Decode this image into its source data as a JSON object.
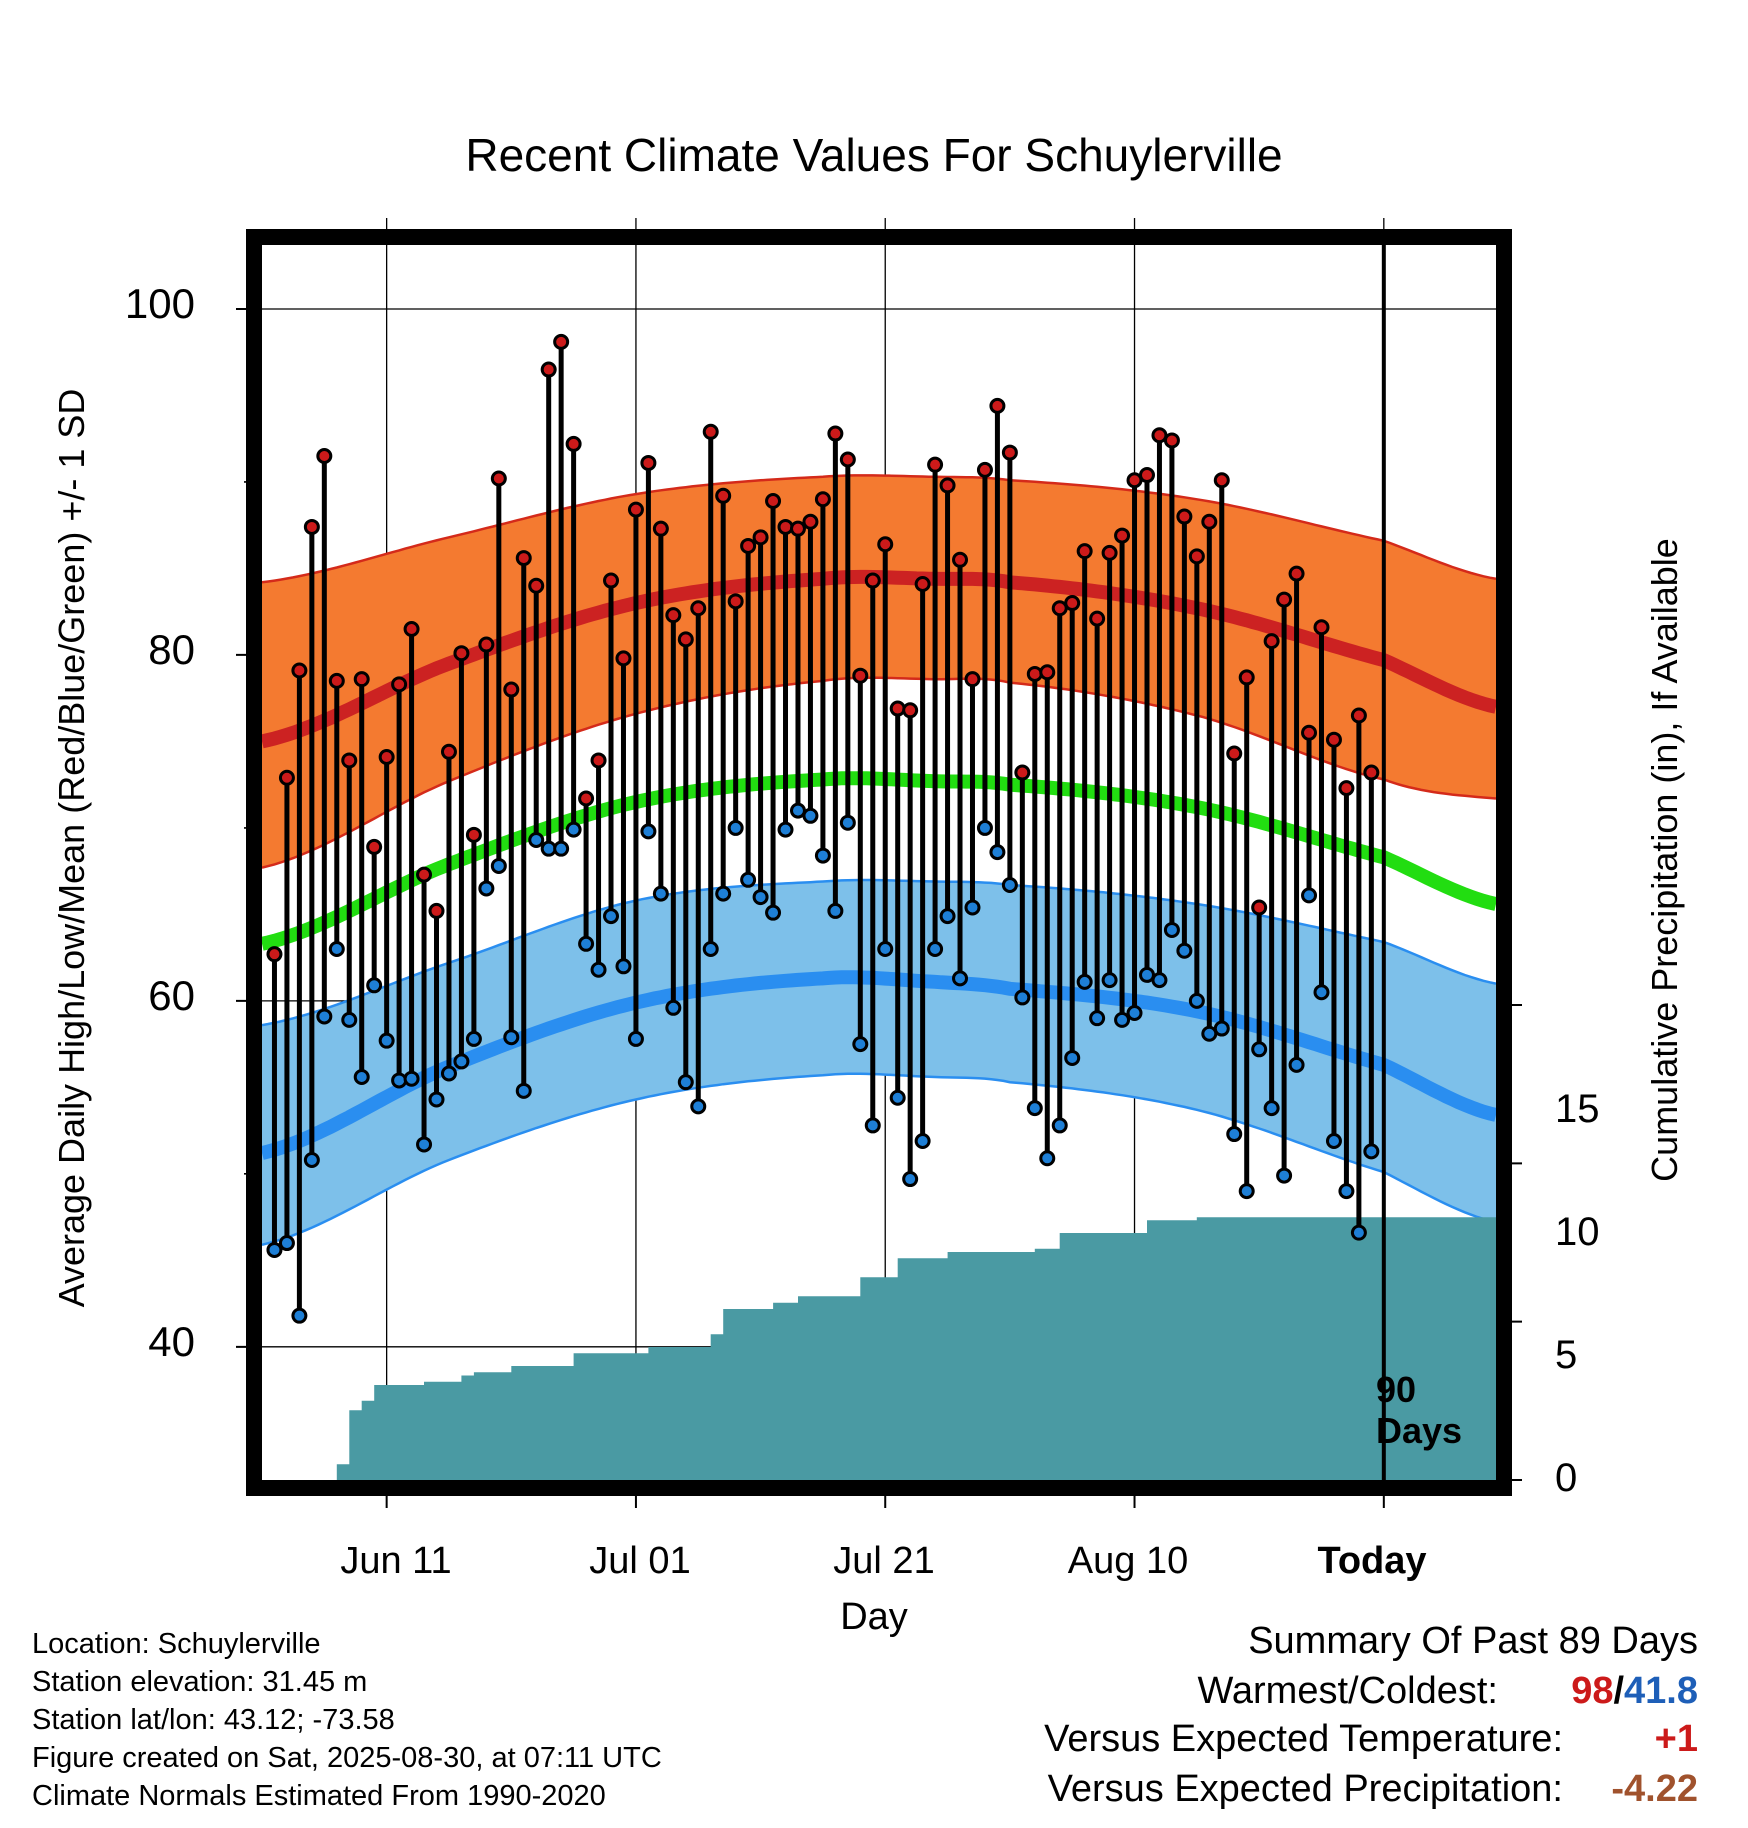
{
  "title": "Recent Climate Values For Schuylerville",
  "chart_data": {
    "type": "line",
    "title": "Recent Climate Values For Schuylerville",
    "xlabel": "Day",
    "ylabel": "Average Daily High/Low/Mean (Red/Blue/Green) +/- 1 SD",
    "y2label": "Cumulative Precipitation (in), If Available",
    "x_range_days": [
      -90,
      9
    ],
    "ylim": [
      32.3,
      103.7
    ],
    "y2lim": [
      0,
      39
    ],
    "x_ticks": [
      {
        "day": -80,
        "label": "Jun 11"
      },
      {
        "day": -60,
        "label": "Jul 01"
      },
      {
        "day": -40,
        "label": "Jul 21"
      },
      {
        "day": -20,
        "label": "Aug 10"
      },
      {
        "day": 0,
        "label": "Today"
      }
    ],
    "y_ticks": [
      "100",
      "80",
      "60",
      "40"
    ],
    "y_minor_ticks": [
      90,
      70,
      50
    ],
    "y2_ticks": [
      "0",
      "5",
      "10",
      "15"
    ],
    "grid": true,
    "today_marker_label": "90 Days",
    "normals": {
      "days": [
        -90,
        -75,
        -60,
        -45,
        -36,
        -30,
        -15,
        0,
        9
      ],
      "high_mean": [
        75.0,
        79.5,
        83.0,
        84.4,
        84.4,
        84.2,
        82.7,
        79.7,
        77.0
      ],
      "high_upper": [
        84.2,
        86.8,
        89.3,
        90.3,
        90.3,
        90.1,
        89.0,
        86.6,
        84.4
      ],
      "high_lower": [
        67.7,
        72.7,
        76.6,
        78.5,
        78.6,
        78.4,
        76.5,
        72.8,
        71.7
      ],
      "mean": [
        63.3,
        67.9,
        71.5,
        72.8,
        72.7,
        72.5,
        71.2,
        68.3,
        65.6
      ],
      "low_mean": [
        51.2,
        56.2,
        59.9,
        61.3,
        61.1,
        60.7,
        59.4,
        56.3,
        53.4
      ],
      "low_upper": [
        58.6,
        62.2,
        65.8,
        66.9,
        66.9,
        66.7,
        65.6,
        63.4,
        61.0
      ],
      "low_lower": [
        45.9,
        50.8,
        54.3,
        55.7,
        55.6,
        55.3,
        53.7,
        50.1,
        47.2
      ]
    },
    "series": [
      {
        "name": "High",
        "color": "#cc1a1a",
        "values": [
          62.7,
          72.9,
          79.1,
          87.4,
          91.5,
          78.5,
          73.9,
          78.6,
          68.9,
          74.1,
          78.3,
          81.5,
          67.3,
          65.2,
          74.4,
          80.1,
          69.6,
          80.6,
          90.2,
          78.0,
          85.6,
          84.0,
          96.5,
          98.1,
          92.2,
          71.7,
          73.9,
          84.3,
          79.8,
          88.4,
          91.1,
          87.3,
          82.3,
          80.9,
          82.7,
          92.9,
          89.2,
          83.1,
          86.3,
          86.8,
          88.9,
          87.4,
          87.3,
          87.7,
          89.0,
          92.8,
          91.3,
          78.8,
          84.3,
          86.4,
          76.9,
          76.8,
          84.1,
          91.0,
          89.8,
          85.5,
          78.6,
          90.7,
          94.4,
          91.7,
          73.2,
          78.9,
          79.0,
          82.7,
          83.0,
          86.0,
          82.1,
          85.9,
          86.9,
          90.1,
          90.4,
          92.7,
          92.4,
          88.0,
          85.7,
          87.7,
          90.1,
          74.3,
          78.7,
          65.4,
          80.8,
          83.2,
          84.7,
          75.5,
          81.6,
          75.1,
          72.3,
          76.5,
          73.2
        ]
      },
      {
        "name": "Low",
        "color": "#1e7fd6",
        "values": [
          45.6,
          46.0,
          41.8,
          50.8,
          59.1,
          63.0,
          58.9,
          55.6,
          60.9,
          57.7,
          55.4,
          55.5,
          51.7,
          54.3,
          55.8,
          56.5,
          57.8,
          66.5,
          67.8,
          57.9,
          54.8,
          69.3,
          68.8,
          68.8,
          69.9,
          63.3,
          61.8,
          64.9,
          62.0,
          57.8,
          69.8,
          66.2,
          59.6,
          55.3,
          53.9,
          63.0,
          66.2,
          70.0,
          67.0,
          66.0,
          65.1,
          69.9,
          71.0,
          70.7,
          68.4,
          65.2,
          70.3,
          57.5,
          52.8,
          63.0,
          54.4,
          49.7,
          51.9,
          63.0,
          64.9,
          61.3,
          65.4,
          70.0,
          68.6,
          66.7,
          60.2,
          53.8,
          50.9,
          52.8,
          56.7,
          61.1,
          59.0,
          61.2,
          58.9,
          59.3,
          61.5,
          61.2,
          64.1,
          62.9,
          60.0,
          58.1,
          58.4,
          52.3,
          49.0,
          57.2,
          53.8,
          49.9,
          56.3,
          66.1,
          60.5,
          51.9,
          49.0,
          46.6,
          51.3
        ]
      },
      {
        "name": "Cumulative Precipitation",
        "color": "#4a9aa3",
        "values": [
          0.0,
          0.0,
          0.0,
          0.0,
          0.0,
          0.5,
          2.2,
          2.5,
          3.0,
          3.0,
          3.0,
          3.0,
          3.1,
          3.1,
          3.1,
          3.3,
          3.4,
          3.4,
          3.4,
          3.6,
          3.6,
          3.6,
          3.6,
          3.6,
          4.0,
          4.0,
          4.0,
          4.0,
          4.0,
          4.0,
          4.2,
          4.2,
          4.2,
          4.2,
          4.2,
          4.6,
          5.4,
          5.4,
          5.4,
          5.4,
          5.6,
          5.6,
          5.8,
          5.8,
          5.8,
          5.8,
          5.8,
          6.4,
          6.4,
          6.4,
          7.0,
          7.0,
          7.0,
          7.0,
          7.2,
          7.2,
          7.2,
          7.2,
          7.2,
          7.2,
          7.2,
          7.3,
          7.3,
          7.8,
          7.8,
          7.8,
          7.8,
          7.8,
          7.8,
          7.8,
          8.2,
          8.2,
          8.2,
          8.2,
          8.3,
          8.3,
          8.3,
          8.3,
          8.3,
          8.3
        ]
      }
    ]
  },
  "station": {
    "location": "Location: Schuylerville",
    "elevation": "Station elevation: 31.45 m",
    "latlon": "Station lat/lon: 43.12; -73.58",
    "created": "Figure created on Sat, 2025-08-30, at 07:11 UTC",
    "normals_period": "Climate Normals Estimated From 1990-2020"
  },
  "summary": {
    "heading": "Summary Of Past 89 Days",
    "warm_cold_label": "Warmest/Coldest:",
    "warmest": "98",
    "sep": "/",
    "coldest": "41.8",
    "temp_label": "Versus Expected Temperature:",
    "temp_value": "+1",
    "temp_color": "#cc1a1a",
    "precip_label": "Versus Expected Precipitation:",
    "precip_value": "-4.22",
    "precip_color": "#a0522d"
  },
  "colors": {
    "high_band": "#f47a30",
    "high_line": "#cc2222",
    "mean_line": "#22dd11",
    "low_band": "#7dc0ea",
    "low_line": "#2a8ef0",
    "precip_fill": "#4a9aa3",
    "warmest": "#cc1a1a",
    "coldest": "#1e5fb8"
  }
}
